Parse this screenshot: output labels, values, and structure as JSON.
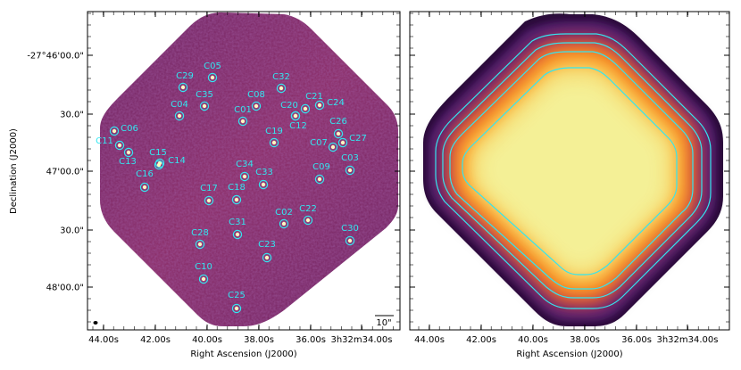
{
  "colors": {
    "cyan": "#33e6f0",
    "map_dark": "#5a1d5e",
    "map_mid": "#a8315f",
    "frame": "#000000"
  },
  "left_panel": {
    "ylabel": "Declination (J2000)",
    "xlabel": "Right Ascension (J2000)",
    "x_ticks": [
      "44.00s",
      "42.00s",
      "40.00s",
      "38.00s",
      "36.00s",
      "3h32m34.00s"
    ],
    "y_ticks": [
      "-27°46'00.0\"",
      "30.0\"",
      "47'00.0\"",
      "30.0\"",
      "48'00.0\""
    ],
    "scalebar_label": "10\""
  },
  "right_panel": {
    "xlabel": "Right Ascension (J2000)",
    "x_ticks": [
      "44.00s",
      "42.00s",
      "40.00s",
      "38.00s",
      "36.00s",
      "3h32m34.00s"
    ]
  },
  "sources": [
    {
      "id": "C05"
    },
    {
      "id": "C29"
    },
    {
      "id": "C32"
    },
    {
      "id": "C35"
    },
    {
      "id": "C08"
    },
    {
      "id": "C21"
    },
    {
      "id": "C04"
    },
    {
      "id": "C20"
    },
    {
      "id": "C24"
    },
    {
      "id": "C01"
    },
    {
      "id": "C12"
    },
    {
      "id": "C26"
    },
    {
      "id": "C06"
    },
    {
      "id": "C19"
    },
    {
      "id": "C11"
    },
    {
      "id": "C07"
    },
    {
      "id": "C27"
    },
    {
      "id": "C13"
    },
    {
      "id": "C15"
    },
    {
      "id": "C14"
    },
    {
      "id": "C03"
    },
    {
      "id": "C34"
    },
    {
      "id": "C09"
    },
    {
      "id": "C16"
    },
    {
      "id": "C33"
    },
    {
      "id": "C17"
    },
    {
      "id": "C18"
    },
    {
      "id": "C02"
    },
    {
      "id": "C22"
    },
    {
      "id": "C31"
    },
    {
      "id": "C28"
    },
    {
      "id": "C30"
    },
    {
      "id": "C23"
    },
    {
      "id": "C10"
    },
    {
      "id": "C25"
    }
  ]
}
